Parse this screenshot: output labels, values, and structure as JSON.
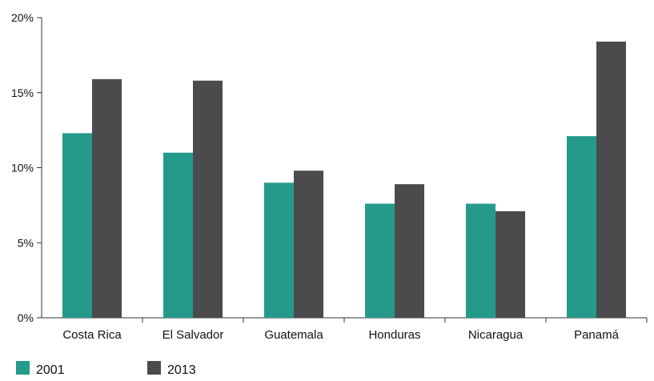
{
  "chart_data": {
    "type": "bar",
    "categories": [
      "Costa Rica",
      "El Salvador",
      "Guatemala",
      "Honduras",
      "Nicaragua",
      "Panamá"
    ],
    "series": [
      {
        "name": "2001",
        "color": "#259a8a",
        "values": [
          12.3,
          11.0,
          9.0,
          7.6,
          7.6,
          12.1
        ]
      },
      {
        "name": "2013",
        "color": "#4b4b4d",
        "values": [
          15.9,
          15.8,
          9.8,
          8.9,
          7.1,
          18.4
        ]
      }
    ],
    "ylim": [
      0,
      20
    ],
    "yticks": [
      {
        "value": 0,
        "label": "0%"
      },
      {
        "value": 5,
        "label": "5%"
      },
      {
        "value": 10,
        "label": "10%"
      },
      {
        "value": 15,
        "label": "15%"
      },
      {
        "value": 20,
        "label": "20%"
      }
    ],
    "title": "",
    "xlabel": "",
    "ylabel": "",
    "grid": false,
    "legend_position": "bottom-left"
  }
}
